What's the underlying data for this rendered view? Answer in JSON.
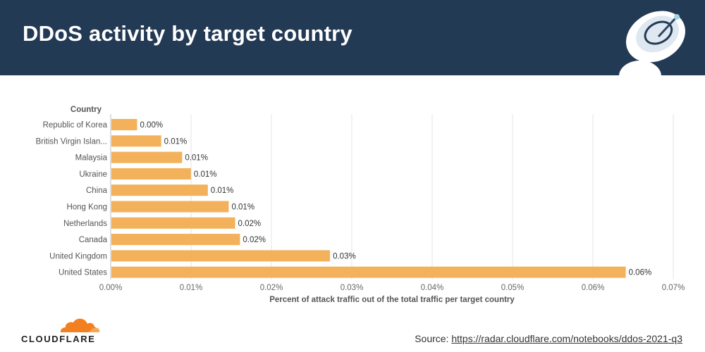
{
  "header": {
    "title": "DDoS activity by target country"
  },
  "colors": {
    "header_bg": "#233a55",
    "bar": "#f2b15a",
    "grid": "#e4e4e4",
    "logo_orange": "#f38020"
  },
  "chart_data": {
    "type": "bar",
    "orientation": "horizontal",
    "ylabel": "Country",
    "xlabel": "Percent of attack traffic out of the total traffic per target country",
    "categories": [
      "Republic of Korea",
      "British Virgin Islan...",
      "Malaysia",
      "Ukraine",
      "China",
      "Hong Kong",
      "Netherlands",
      "Canada",
      "United Kingdom",
      "United States"
    ],
    "values": [
      0.0032,
      0.0062,
      0.0088,
      0.0099,
      0.012,
      0.0146,
      0.0154,
      0.016,
      0.0272,
      0.064
    ],
    "data_labels": [
      "0.00%",
      "0.01%",
      "0.01%",
      "0.01%",
      "0.01%",
      "0.01%",
      "0.02%",
      "0.02%",
      "0.03%",
      "0.06%"
    ],
    "xlim": [
      0,
      0.07
    ],
    "x_ticks": [
      0,
      0.01,
      0.02,
      0.03,
      0.04,
      0.05,
      0.06,
      0.07
    ],
    "x_tick_labels": [
      "0.00%",
      "0.01%",
      "0.02%",
      "0.03%",
      "0.04%",
      "0.05%",
      "0.06%",
      "0.07%"
    ],
    "grid": true
  },
  "footer": {
    "logo_text": "CLOUDFLARE",
    "source_label": "Source:",
    "source_link": "https://radar.cloudflare.com/notebooks/ddos-2021-q3"
  }
}
